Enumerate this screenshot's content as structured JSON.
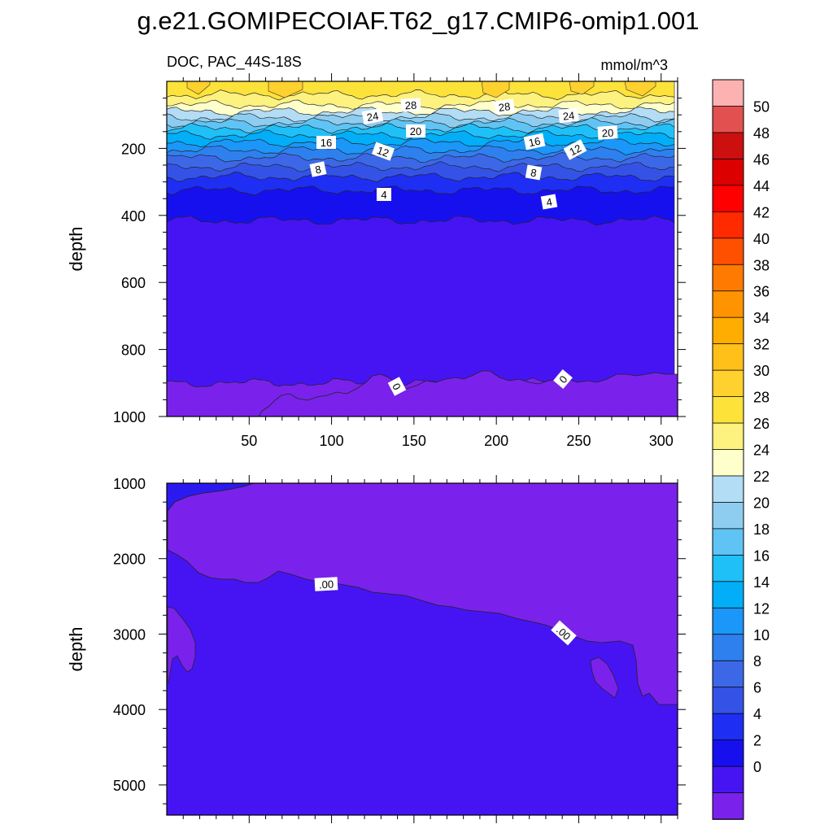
{
  "chart_data": {
    "type": "heatmap",
    "title": "g.e21.GOMIPECOIAF.T62_g17.CMIP6-omip1.001",
    "panels": [
      {
        "name": "upper",
        "left_label": "DOC, PAC_44S-18S",
        "right_label": "mmol/m^3",
        "ylabel": "depth",
        "ylim": [
          1000,
          0
        ],
        "xlim": [
          0,
          310
        ],
        "x_ticks": [
          "50",
          "100",
          "150",
          "200",
          "250",
          "300"
        ],
        "y_ticks": [
          "200",
          "400",
          "600",
          "800",
          "1000"
        ],
        "contour_labels": [
          "28",
          "28",
          "24",
          "24",
          "20",
          "20",
          "16",
          "16",
          "12",
          "12",
          "8",
          "8",
          "4",
          "4",
          "0",
          "0"
        ],
        "bands": [
          {
            "top": 0,
            "bottom": 40,
            "color": "#fde23a"
          },
          {
            "top": 40,
            "bottom": 70,
            "color": "#fdf180"
          },
          {
            "top": 70,
            "bottom": 90,
            "color": "#ffffcc"
          },
          {
            "top": 90,
            "bottom": 108,
            "color": "#b3dcf5"
          },
          {
            "top": 108,
            "bottom": 124,
            "color": "#8ecdf0"
          },
          {
            "top": 124,
            "bottom": 140,
            "color": "#5fc4f4"
          },
          {
            "top": 140,
            "bottom": 160,
            "color": "#1fc0f8"
          },
          {
            "top": 160,
            "bottom": 182,
            "color": "#02aef8"
          },
          {
            "top": 182,
            "bottom": 205,
            "color": "#1b96f9"
          },
          {
            "top": 205,
            "bottom": 228,
            "color": "#2f80ef"
          },
          {
            "top": 228,
            "bottom": 255,
            "color": "#3c68e8"
          },
          {
            "top": 255,
            "bottom": 285,
            "color": "#3453e6"
          },
          {
            "top": 285,
            "bottom": 325,
            "color": "#1f2ef3"
          },
          {
            "top": 325,
            "bottom": 415,
            "color": "#1710ee"
          },
          {
            "top": 415,
            "bottom": 900,
            "color": "#4614f3"
          },
          {
            "top": 900,
            "bottom": 1000,
            "color": "#7a22eb"
          }
        ]
      },
      {
        "name": "lower",
        "ylabel": "depth",
        "ylim": [
          5400,
          1000
        ],
        "y_ticks": [
          "1000",
          "2000",
          "3000",
          "4000",
          "5000"
        ],
        "contour_labels": [
          ".00",
          ".00"
        ]
      }
    ],
    "colorbar": {
      "labels": [
        "50",
        "48",
        "46",
        "44",
        "42",
        "40",
        "38",
        "36",
        "34",
        "32",
        "30",
        "28",
        "26",
        "24",
        "22",
        "20",
        "18",
        "16",
        "14",
        "12",
        "10",
        "8",
        "6",
        "4",
        "2",
        "0"
      ],
      "colors": [
        "#fdb2b2",
        "#e35050",
        "#cc1010",
        "#dc0000",
        "#ff0000",
        "#ff2a00",
        "#ff5000",
        "#ff7a00",
        "#ff9400",
        "#ffad00",
        "#ffc01a",
        "#ffd12e",
        "#fde23a",
        "#fdf180",
        "#ffffcc",
        "#b3dcf5",
        "#8ecdf0",
        "#5fc4f4",
        "#1fc0f8",
        "#02aef8",
        "#1b96f9",
        "#2f80ef",
        "#3c68e8",
        "#3453e6",
        "#1f2ef3",
        "#1710ee",
        "#4614f3",
        "#7a22eb"
      ]
    }
  }
}
